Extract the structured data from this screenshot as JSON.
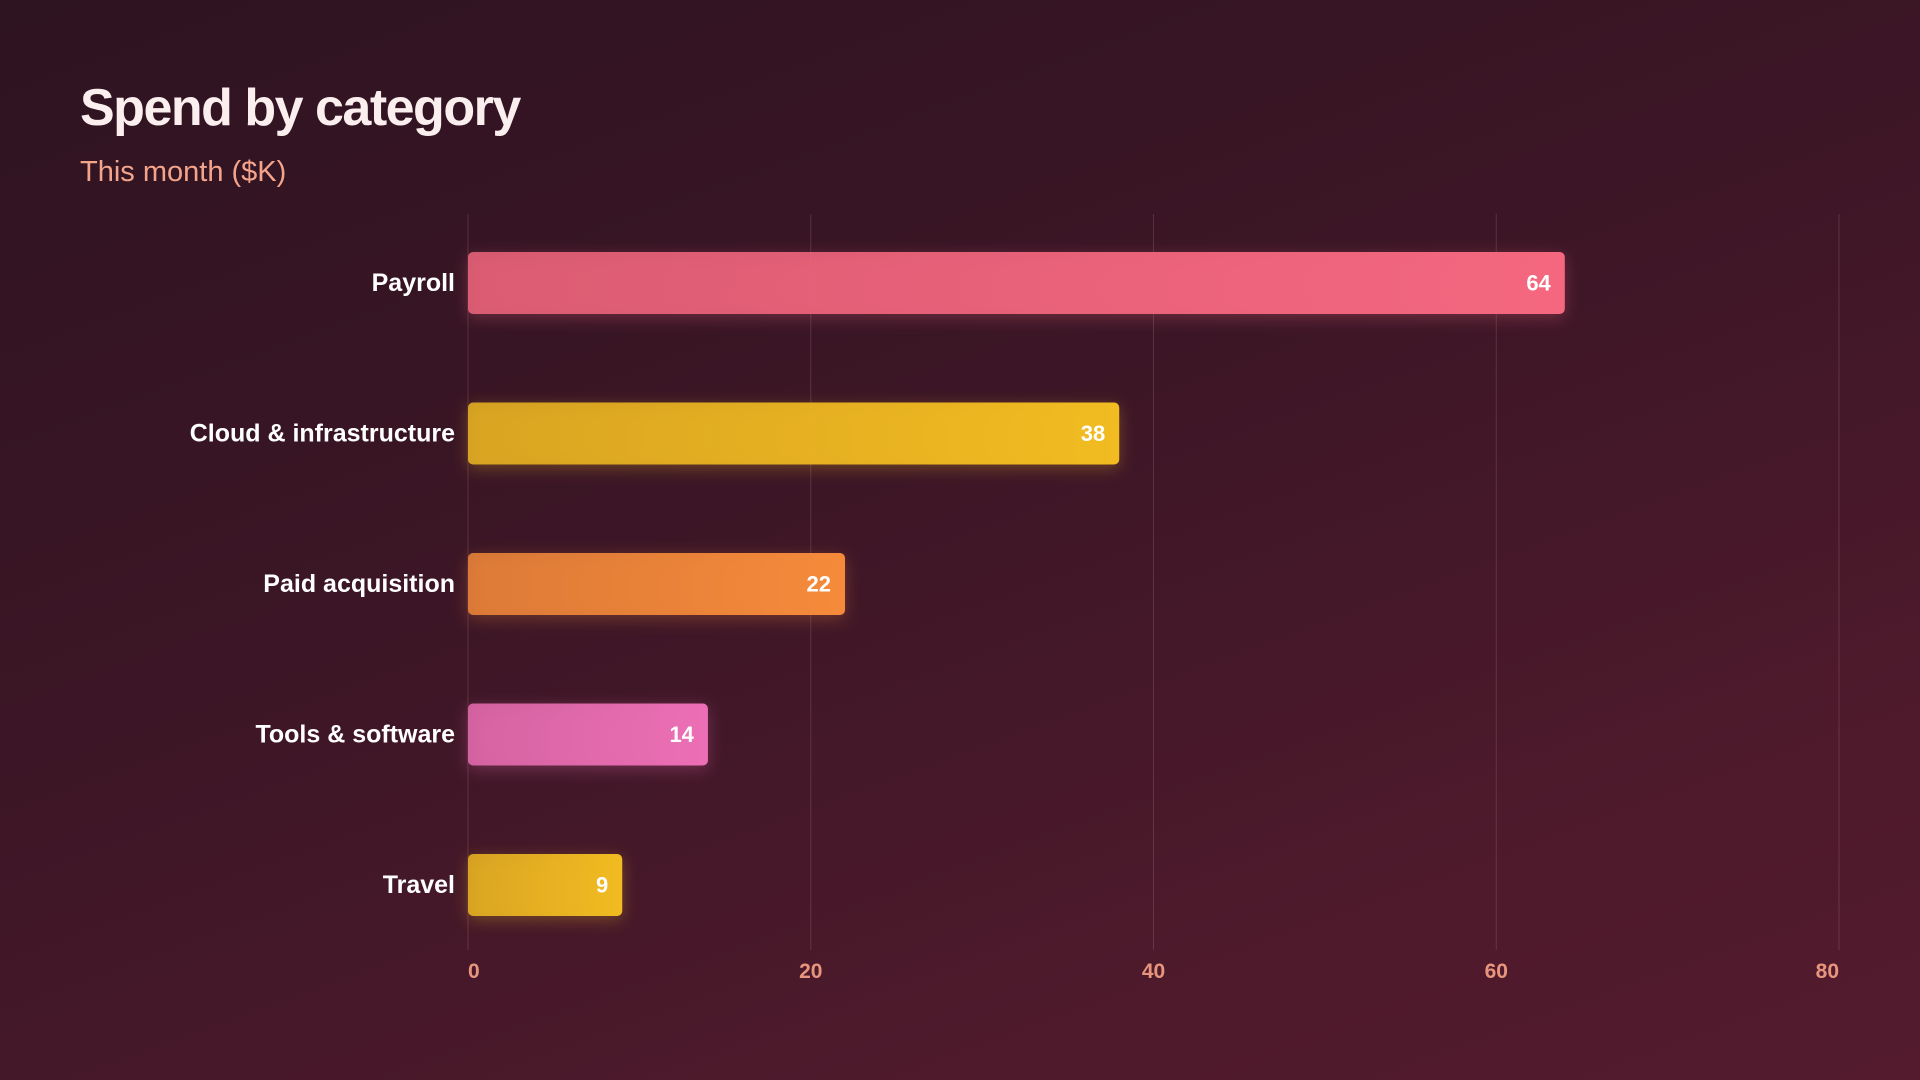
{
  "chart_data": {
    "type": "bar",
    "orientation": "horizontal",
    "title": "Spend by category",
    "subtitle": "This month ($K)",
    "categories": [
      "Payroll",
      "Cloud & infrastructure",
      "Paid acquisition",
      "Tools & software",
      "Travel"
    ],
    "values": [
      64,
      38,
      22,
      14,
      9
    ],
    "xlim": [
      0,
      80
    ],
    "xticks": [
      0,
      20,
      40,
      60,
      80
    ],
    "grid": "vertical",
    "colors": [
      "#f4677f",
      "#f1bb21",
      "#f58a3a",
      "#ec6fb5",
      "#f1bb21"
    ]
  }
}
